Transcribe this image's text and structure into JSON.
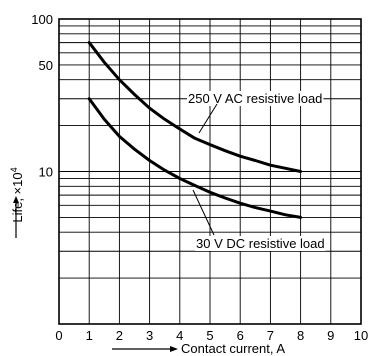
{
  "chart_data": {
    "type": "line",
    "xlabel": "Contact current, A",
    "ylabel": "Life, ×10",
    "ylabel_exponent": "4",
    "x_ticks": [
      "0",
      "1",
      "2",
      "3",
      "4",
      "5",
      "6",
      "7",
      "8",
      "9",
      "10"
    ],
    "y_ticks": [
      {
        "value": 100,
        "label": "100"
      },
      {
        "value": 50,
        "label": "50"
      },
      {
        "value": 10,
        "label": "10"
      }
    ],
    "xlim": [
      0,
      10
    ],
    "ylim": [
      1,
      100
    ],
    "y_scale": "log",
    "grid": true,
    "series": [
      {
        "name": "250 V AC resistive load",
        "x": [
          1,
          1.5,
          2,
          2.5,
          3,
          3.5,
          4,
          4.5,
          5,
          5.5,
          6,
          6.5,
          7,
          7.5,
          8
        ],
        "values": [
          70,
          52,
          40,
          32,
          26,
          22,
          19,
          16.5,
          15,
          13.7,
          12.6,
          11.8,
          11,
          10.5,
          10
        ]
      },
      {
        "name": "30 V DC resistive load",
        "x": [
          1,
          1.5,
          2,
          2.5,
          3,
          3.5,
          4,
          4.5,
          5,
          5.5,
          6,
          6.5,
          7,
          7.5,
          8
        ],
        "values": [
          30,
          22,
          17,
          14,
          11.8,
          10.2,
          9,
          8.1,
          7.3,
          6.7,
          6.2,
          5.8,
          5.5,
          5.2,
          5
        ]
      }
    ]
  }
}
